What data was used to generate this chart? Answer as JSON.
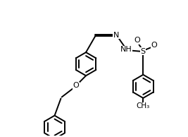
{
  "bg_color": "#ffffff",
  "line_color": "#000000",
  "line_width": 1.4,
  "font_size": 7.5,
  "figsize": [
    2.67,
    1.94
  ],
  "dpi": 100,
  "xlim": [
    0,
    10.5
  ],
  "ylim": [
    0,
    7.5
  ]
}
